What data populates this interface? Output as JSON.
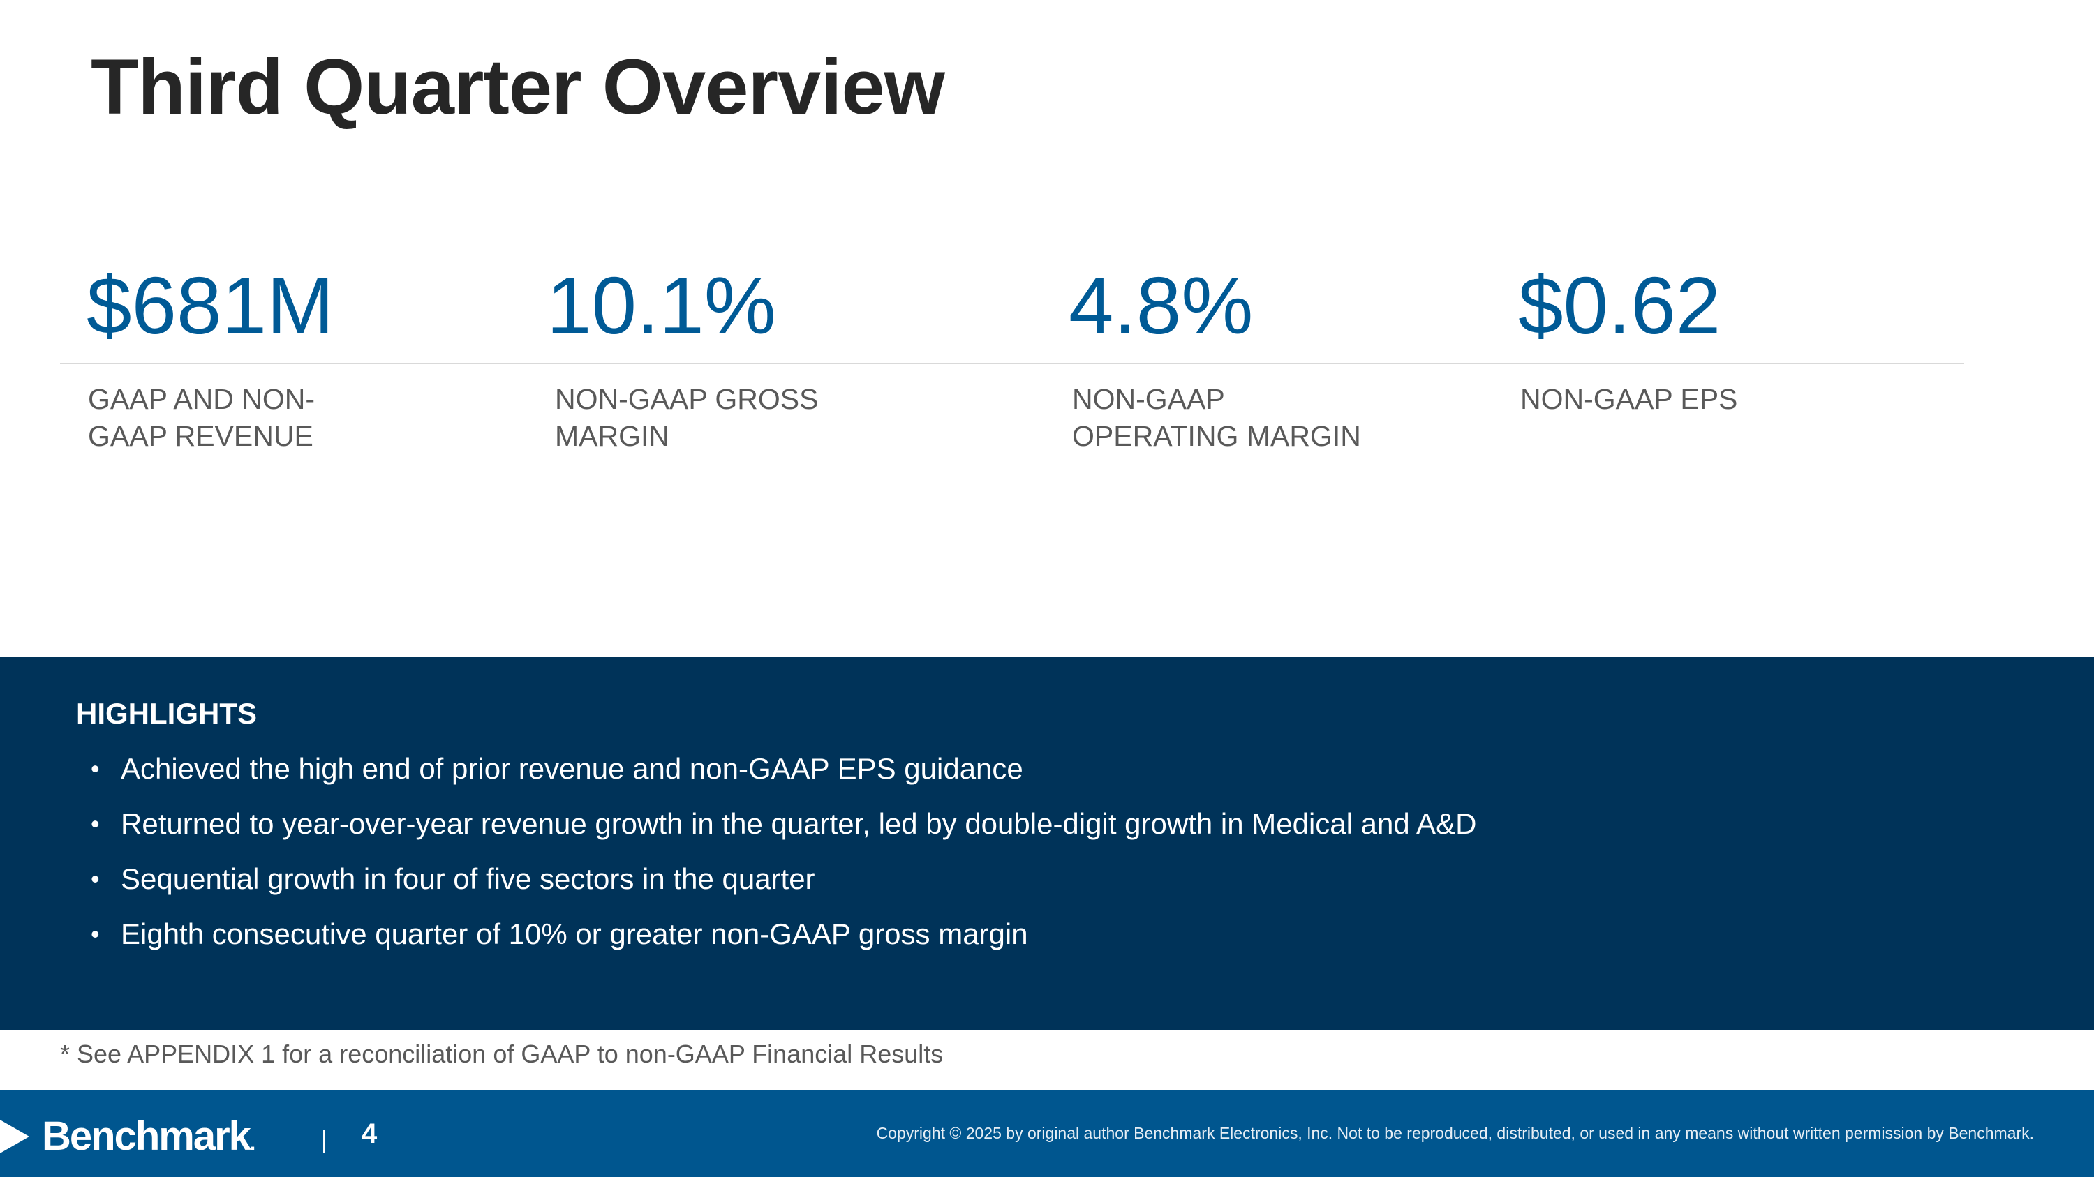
{
  "slide": {
    "title": "Third Quarter Overview"
  },
  "metrics": [
    {
      "value": "$681M",
      "label": "GAAP AND NON-\nGAAP REVENUE"
    },
    {
      "value": "10.1%",
      "label": "NON-GAAP GROSS\nMARGIN"
    },
    {
      "value": "4.8%",
      "label": "NON-GAAP\nOPERATING  MARGIN"
    },
    {
      "value": "$0.62",
      "label": "NON-GAAP EPS"
    }
  ],
  "highlights": {
    "heading": "HIGHLIGHTS",
    "bullet": "•",
    "items": [
      "Achieved the high end of prior revenue and non-GAAP EPS guidance",
      "Returned to year-over-year revenue growth in the quarter, led by double-digit growth in Medical and A&D",
      "Sequential growth in four of five sectors in the quarter",
      "Eighth consecutive quarter of 10% or greater non-GAAP gross margin"
    ]
  },
  "footnote": "* See APPENDIX 1 for a reconciliation of GAAP to non-GAAP Financial Results",
  "footer": {
    "logo_text": "Benchmark",
    "logo_dot": ".",
    "separator": "|",
    "page_number": "4",
    "copyright": "Copyright © 2025 by original author Benchmark Electronics, Inc. Not to be reproduced, distributed, or used in any means without written permission by Benchmark."
  },
  "colors": {
    "accent": "#005a96",
    "panel": "#003359",
    "footer": "#00568f",
    "title": "#262626",
    "label": "#595959"
  }
}
